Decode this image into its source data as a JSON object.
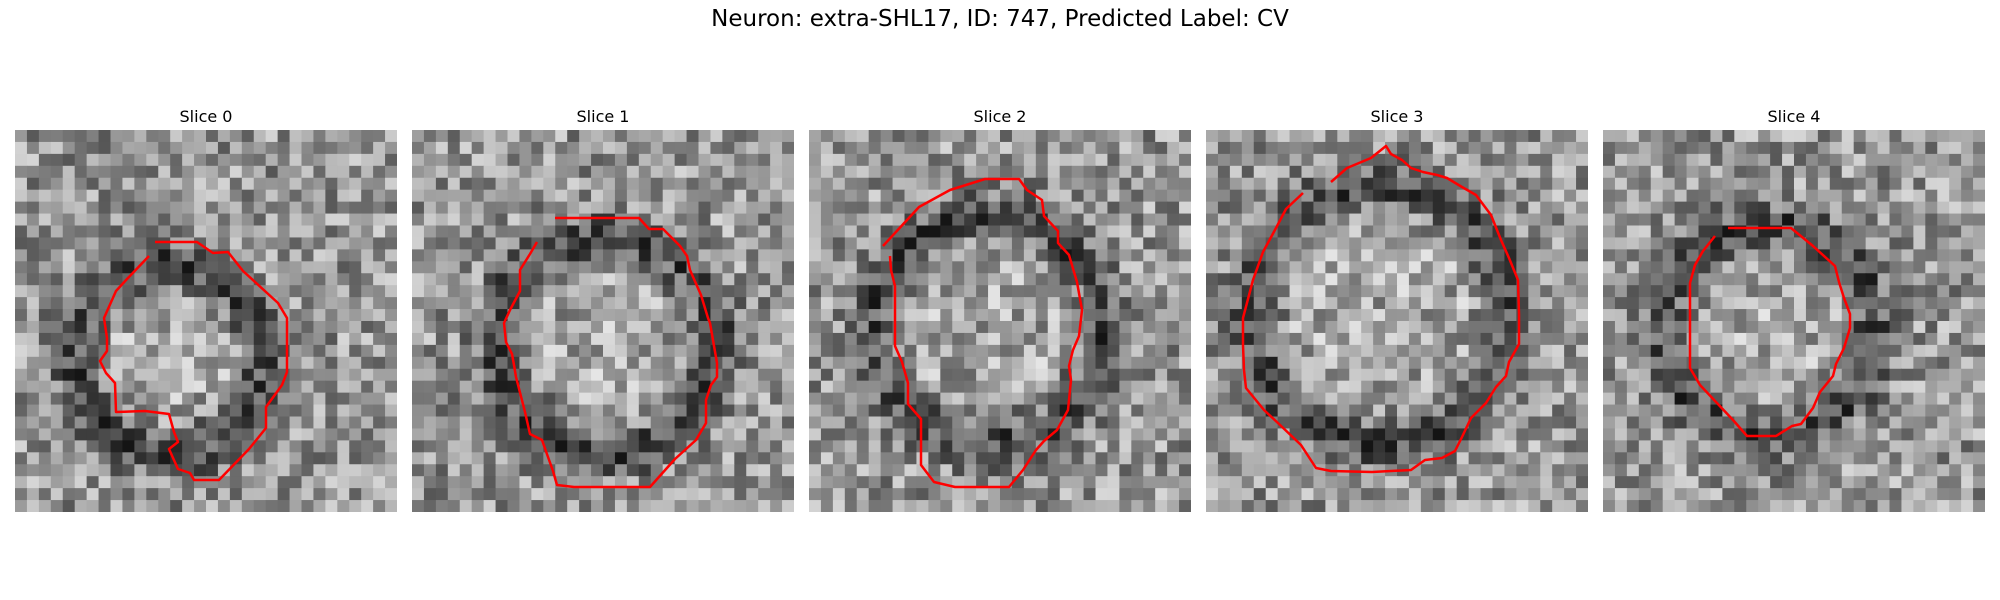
{
  "figure": {
    "title": "Neuron: extra-SHL17, ID: 747, Predicted Label: CV",
    "outline_color": "#ff0000"
  },
  "panels": [
    {
      "title": "Slice 0"
    },
    {
      "title": "Slice 1"
    },
    {
      "title": "Slice 2"
    },
    {
      "title": "Slice 3"
    },
    {
      "title": "Slice 4"
    }
  ]
}
